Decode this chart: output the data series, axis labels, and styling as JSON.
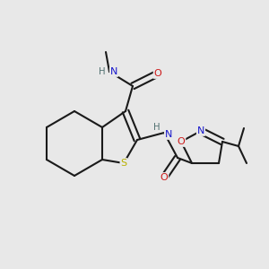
{
  "background_color": "#e8e8e8",
  "bond_color": "#1a1a1a",
  "atom_colors": {
    "S": "#b8b000",
    "N": "#1818cc",
    "O": "#cc1818",
    "H": "#507070",
    "C": "#1a1a1a"
  },
  "figsize": [
    3.0,
    3.0
  ],
  "dpi": 100
}
